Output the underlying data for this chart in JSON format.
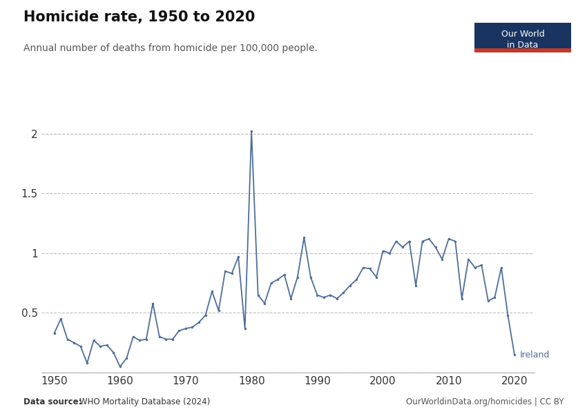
{
  "title": "Homicide rate, 1950 to 2020",
  "subtitle": "Annual number of deaths from homicide per 100,000 people.",
  "source_left": "Data source: WHO Mortality Database (2024)",
  "source_right": "OurWorldinData.org/homicides | CC BY",
  "line_color": "#4C6D9B",
  "label": "Ireland",
  "years": [
    1950,
    1951,
    1952,
    1953,
    1954,
    1955,
    1956,
    1957,
    1958,
    1959,
    1960,
    1961,
    1962,
    1963,
    1964,
    1965,
    1966,
    1967,
    1968,
    1969,
    1970,
    1971,
    1972,
    1973,
    1974,
    1975,
    1976,
    1977,
    1978,
    1979,
    1980,
    1981,
    1982,
    1983,
    1984,
    1985,
    1986,
    1987,
    1988,
    1989,
    1990,
    1991,
    1992,
    1993,
    1994,
    1995,
    1996,
    1997,
    1998,
    1999,
    2000,
    2001,
    2002,
    2003,
    2004,
    2005,
    2006,
    2007,
    2008,
    2009,
    2010,
    2011,
    2012,
    2013,
    2014,
    2015,
    2016,
    2017,
    2018,
    2019,
    2020
  ],
  "values": [
    0.33,
    0.45,
    0.28,
    0.25,
    0.22,
    0.08,
    0.27,
    0.22,
    0.23,
    0.17,
    0.05,
    0.12,
    0.3,
    0.27,
    0.28,
    0.58,
    0.3,
    0.28,
    0.28,
    0.35,
    0.37,
    0.38,
    0.42,
    0.48,
    0.68,
    0.52,
    0.85,
    0.83,
    0.97,
    0.37,
    2.02,
    0.65,
    0.58,
    0.75,
    0.78,
    0.82,
    0.62,
    0.8,
    1.13,
    0.8,
    0.65,
    0.63,
    0.65,
    0.62,
    0.67,
    0.73,
    0.78,
    0.88,
    0.87,
    0.8,
    1.02,
    1.0,
    1.1,
    1.05,
    1.1,
    0.73,
    1.1,
    1.12,
    1.05,
    0.95,
    1.12,
    1.1,
    0.62,
    0.95,
    0.88,
    0.9,
    0.6,
    0.63,
    0.88,
    0.48,
    0.15
  ],
  "ylim": [
    0,
    2.15
  ],
  "yticks": [
    0,
    0.5,
    1.0,
    1.5,
    2.0
  ],
  "xlim": [
    1948,
    2023
  ],
  "xticks": [
    1950,
    1960,
    1970,
    1980,
    1990,
    2000,
    2010,
    2020
  ],
  "owid_box_color": "#1a3461",
  "owid_box_red": "#c0392b",
  "background_color": "#ffffff",
  "grid_color": "#bbbbbb"
}
